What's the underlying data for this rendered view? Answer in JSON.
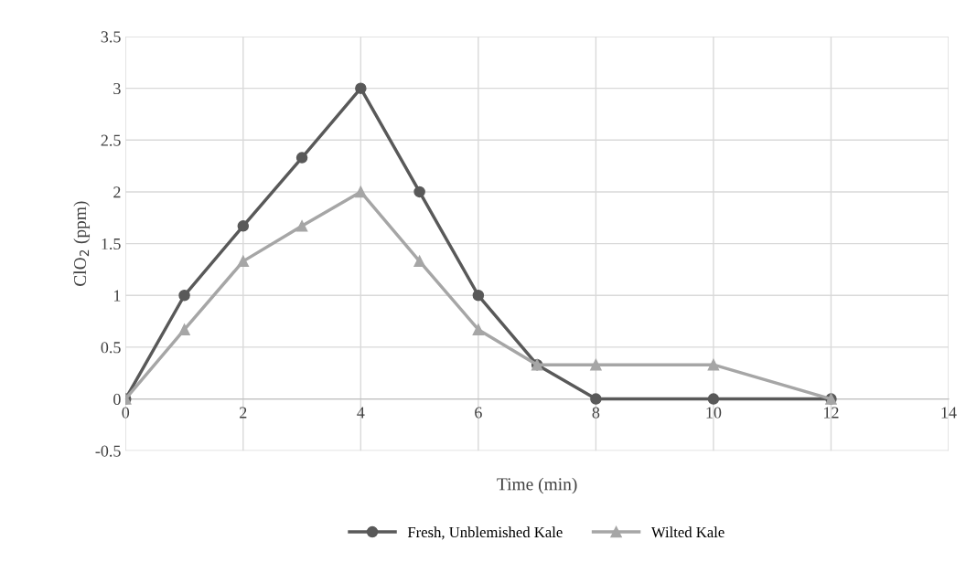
{
  "chart_data": {
    "type": "line",
    "xlabel": "Time (min)",
    "ylabel": "ClO$_{2}$ (ppm)",
    "xlim": [
      0,
      14
    ],
    "xticks": [
      0,
      2,
      4,
      6,
      8,
      10,
      12,
      14
    ],
    "ylim": [
      -0.5,
      3.5
    ],
    "yticks": [
      -0.5,
      0,
      0.5,
      1,
      1.5,
      2,
      2.5,
      3,
      3.5
    ],
    "grid": true,
    "legend": "bottom",
    "line_style": "solid",
    "series": [
      {
        "name": "Fresh, Unblemished Kale",
        "color": "#595959",
        "marker": "circle",
        "x": [
          0,
          1,
          2,
          3,
          4,
          5,
          6,
          7,
          8,
          10,
          12
        ],
        "values": [
          0,
          1,
          1.67,
          2.33,
          3,
          2,
          1,
          0.33,
          0,
          0,
          0
        ]
      },
      {
        "name": "Wilted Kale",
        "color": "#a6a6a6",
        "marker": "triangle",
        "x": [
          0,
          1,
          2,
          3,
          4,
          5,
          6,
          7,
          8,
          10,
          12
        ],
        "values": [
          0,
          0.67,
          1.33,
          1.67,
          2,
          1.33,
          0.67,
          0.33,
          0.33,
          0.33,
          0
        ]
      }
    ]
  }
}
